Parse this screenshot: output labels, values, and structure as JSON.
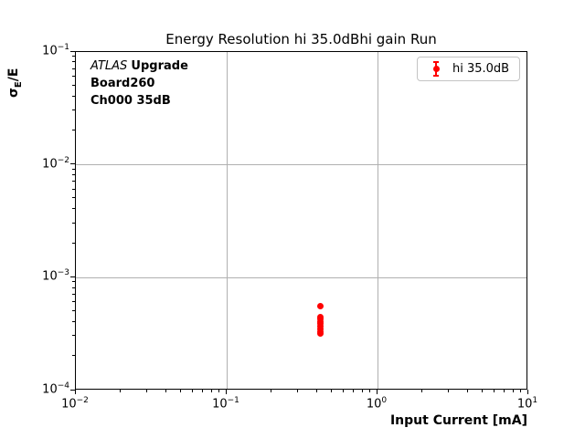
{
  "title": "Energy Resolution hi 35.0dBhi gain Run",
  "annotation": {
    "experiment": "ATLAS",
    "program": "Upgrade",
    "board": "Board260",
    "channel": "Ch000 35dB"
  },
  "legend": {
    "position": "upper right",
    "entries": [
      {
        "label": "hi 35.0dB",
        "color": "#ff0000",
        "marker": "circle-with-errorbar"
      }
    ]
  },
  "axes": {
    "xlabel": "Input Current [mA]",
    "ylabel": {
      "symbol": "σ",
      "subscript": "E",
      "suffix": "/E"
    },
    "x_scale": "log",
    "y_scale": "log",
    "x_range": [
      0.01,
      10
    ],
    "y_range": [
      0.0001,
      0.1
    ],
    "x_ticks": [
      {
        "value": 0.01,
        "base": "10",
        "exp": "−2"
      },
      {
        "value": 0.1,
        "base": "10",
        "exp": "−1"
      },
      {
        "value": 1,
        "base": "10",
        "exp": "0"
      },
      {
        "value": 10,
        "base": "10",
        "exp": "1"
      }
    ],
    "y_ticks": [
      {
        "value": 0.1,
        "base": "10",
        "exp": "−1"
      },
      {
        "value": 0.01,
        "base": "10",
        "exp": "−2"
      },
      {
        "value": 0.001,
        "base": "10",
        "exp": "−3"
      },
      {
        "value": 0.0001,
        "base": "10",
        "exp": "−4"
      }
    ]
  },
  "colors": {
    "accent_red": "#ff0000",
    "grid": "#b0b0b0",
    "axis": "#000000",
    "legend_border": "#c4c4c4",
    "background": "#ffffff"
  },
  "chart_data": {
    "type": "scatter",
    "title": "Energy Resolution hi 35.0dBhi gain Run",
    "xlabel": "Input Current [mA]",
    "ylabel": "sigma_E/E",
    "x_scale": "log",
    "y_scale": "log",
    "xlim": [
      0.01,
      10
    ],
    "ylim": [
      0.0001,
      0.1
    ],
    "grid": true,
    "legend_position": "upper right",
    "series": [
      {
        "name": "hi 35.0dB",
        "color": "#ff0000",
        "marker": "o",
        "x": [
          0.42,
          0.42,
          0.42,
          0.42,
          0.42,
          0.42,
          0.42,
          0.42,
          0.42
        ],
        "y": [
          0.00056,
          0.00045,
          0.00043,
          0.00041,
          0.00039,
          0.00037,
          0.00035,
          0.000335,
          0.00032
        ],
        "yerr": [
          1.5e-05,
          1e-05,
          1e-05,
          1e-05,
          1e-05,
          1e-05,
          1e-05,
          1e-05,
          1.2e-05
        ]
      }
    ]
  }
}
